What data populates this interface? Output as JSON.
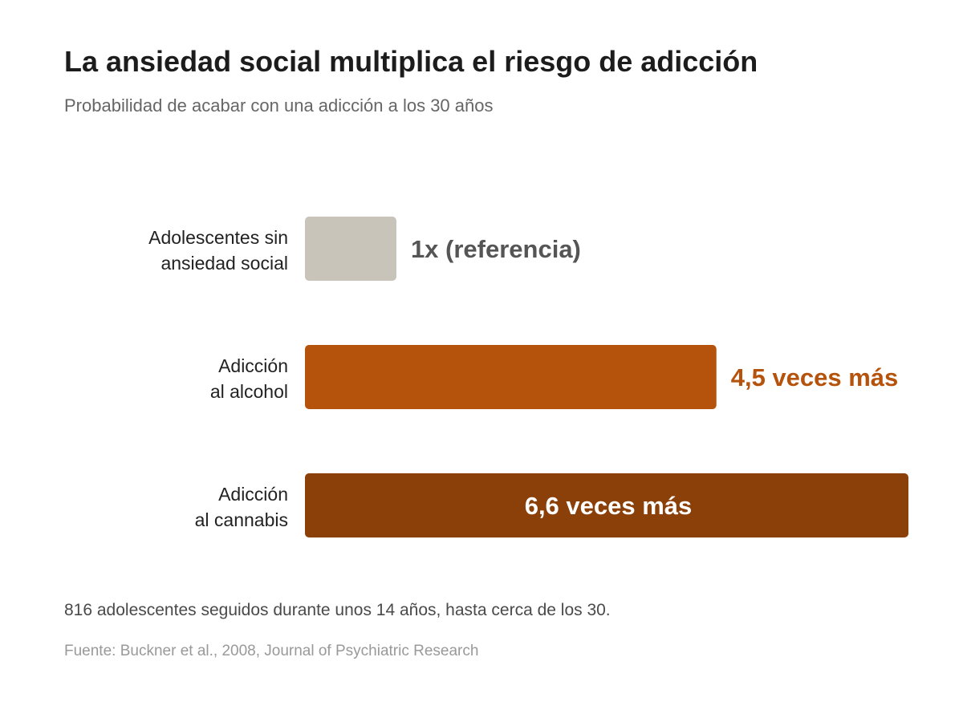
{
  "header": {
    "title": "La ansiedad social multiplica el riesgo de adicción",
    "subtitle": "Probabilidad de acabar con una adicción a los 30 años"
  },
  "chart_data": {
    "type": "bar",
    "orientation": "horizontal",
    "categories": [
      [
        "Adolescentes sin",
        "ansiedad social"
      ],
      [
        "Adicción",
        "al alcohol"
      ],
      [
        "Adicción",
        "al cannabis"
      ]
    ],
    "values": [
      1,
      4.5,
      6.6
    ],
    "value_labels": [
      "1x (referencia)",
      "4,5 veces más",
      "6,6 veces más"
    ],
    "colors": [
      "#c8c4b9",
      "#b5530c",
      "#8b3f09"
    ],
    "label_colors": [
      "#555555",
      "#b5530c",
      "#ffffff"
    ],
    "label_placement": [
      "outside",
      "outside",
      "inside"
    ],
    "xlim": [
      0,
      6.6
    ]
  },
  "footer": {
    "note": "816 adolescentes seguidos durante unos 14 años, hasta cerca de los 30.",
    "source": "Fuente: Buckner et al., 2008, Journal of Psychiatric Research"
  }
}
